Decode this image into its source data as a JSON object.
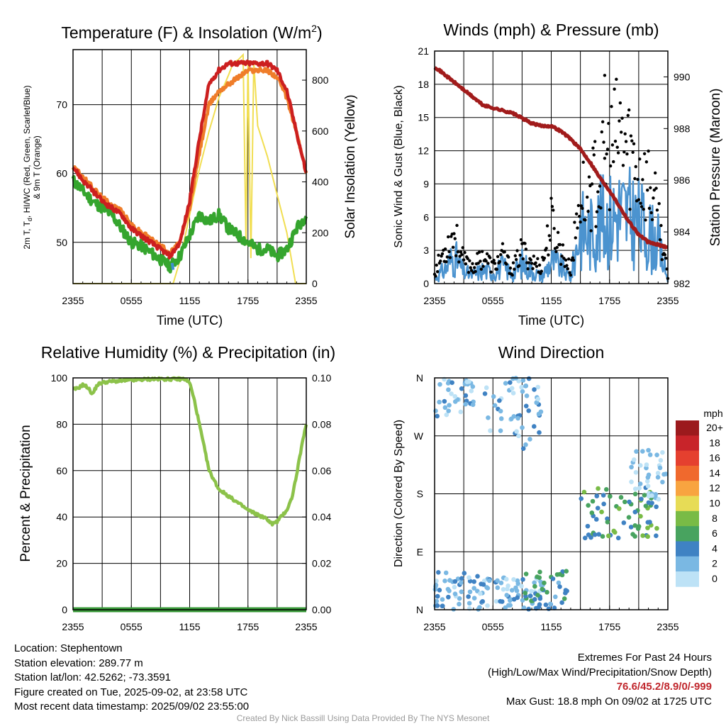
{
  "colors": {
    "temp": "#cc1f1f",
    "heat_index": "#35a52e",
    "temp_9m": "#ef7d2a",
    "dewpoint": "#3f8fd0",
    "solar": "#f1de52",
    "wind": "#4b93cf",
    "gust": "#000000",
    "pressure": "#a11b1b",
    "rh": "#8cc24a",
    "precip": "#3a9a3a",
    "extremes": "#c0272d"
  },
  "chart_data": [
    {
      "type": "line",
      "title": "Temperature (F) & Insolation (W/m²)",
      "xlabel": "Time (UTC)",
      "ylabel": "2m T, Td, HI/WC (Red, Green, Scarlet/Blue) & 9m T (Orange)",
      "ylabel_line1": "2m T, T",
      "ylabel_sub": "d",
      "ylabel_line1_rest": ", HI/WC (Red, Green, Scarlet/Blue)",
      "ylabel_line2": "& 9m T (Orange)",
      "y2label": "Solar Insolation (Yellow)",
      "x_ticks": [
        "2355",
        "0555",
        "1155",
        "1755",
        "2355"
      ],
      "ylim": [
        44,
        78
      ],
      "y_ticks": [
        50,
        60,
        70
      ],
      "y2lim": [
        0,
        920
      ],
      "y2_ticks": [
        0,
        200,
        400,
        600,
        800
      ],
      "series": [
        {
          "name": "2m T",
          "hours": [
            0,
            1,
            2,
            3,
            4,
            5,
            6,
            7,
            8,
            9,
            10,
            11,
            12,
            13,
            14,
            15,
            16,
            17,
            18,
            19,
            20,
            21,
            22,
            23,
            24
          ],
          "values": [
            61,
            59,
            57.5,
            56,
            55,
            54,
            52,
            51,
            50,
            49,
            48,
            50,
            56,
            65,
            73,
            75,
            76,
            76,
            76,
            76,
            76,
            75,
            72,
            66,
            60
          ]
        },
        {
          "name": "9m T",
          "hours": [
            0,
            1,
            2,
            3,
            4,
            5,
            6,
            7,
            8,
            9,
            10,
            11,
            12,
            13,
            14,
            15,
            16,
            17,
            18,
            19,
            20,
            21,
            22,
            23,
            24
          ],
          "values": [
            61,
            59.5,
            58,
            56.5,
            55.5,
            54.5,
            52.5,
            51.5,
            50.5,
            49.5,
            48.5,
            50,
            55,
            63,
            70,
            72,
            73,
            74,
            75,
            75,
            75,
            74,
            71,
            66,
            60
          ]
        },
        {
          "name": "Dewpoint",
          "hours": [
            0,
            1,
            2,
            3,
            4,
            5,
            6,
            7,
            8,
            9,
            10,
            11,
            12,
            13,
            14,
            15,
            16,
            17,
            18,
            19,
            20,
            21,
            22,
            23,
            24
          ],
          "values": [
            59,
            57.5,
            56,
            55,
            54,
            52,
            50,
            49.5,
            48.5,
            47.5,
            46.5,
            48,
            51,
            54,
            53,
            54,
            52,
            51,
            50,
            49,
            49,
            48,
            49,
            52,
            54
          ]
        },
        {
          "name": "Solar Insolation",
          "hours": [
            0,
            10.3,
            11,
            12,
            13,
            14,
            15,
            16,
            16.5,
            17,
            17.5,
            17.8,
            18,
            18.3,
            18.6,
            19,
            20,
            21,
            22,
            22.9,
            24
          ],
          "values": [
            0,
            0,
            90,
            270,
            450,
            600,
            730,
            820,
            870,
            880,
            900,
            150,
            880,
            100,
            870,
            620,
            500,
            350,
            200,
            0,
            0
          ]
        }
      ]
    },
    {
      "type": "line",
      "title": "Winds (mph) & Pressure (mb)",
      "xlabel": "Time (UTC)",
      "ylabel": "Sonic Wind & Gust (Blue, Black)",
      "y2label": "Station Pressure (Maroon)",
      "x_ticks": [
        "2355",
        "0555",
        "1155",
        "1755",
        "2355"
      ],
      "ylim": [
        0,
        21
      ],
      "y_ticks": [
        0,
        3,
        6,
        9,
        12,
        15,
        18,
        21
      ],
      "y2lim": [
        982,
        991
      ],
      "y2_ticks": [
        982,
        984,
        986,
        988,
        990
      ],
      "series": [
        {
          "name": "Sonic Wind",
          "hours": [
            0,
            1,
            2,
            3,
            4,
            5,
            6,
            7,
            8,
            9,
            10,
            11,
            12,
            13,
            14,
            15,
            16,
            17,
            18,
            19,
            20,
            21,
            22,
            23,
            24
          ],
          "values": [
            0.5,
            1.2,
            2.5,
            1.0,
            0.8,
            1.2,
            1.0,
            1.5,
            0.8,
            1.8,
            1.2,
            0.6,
            2.0,
            1.5,
            0.5,
            5.0,
            4.5,
            5.5,
            5.8,
            6.5,
            6.0,
            5.5,
            4.5,
            3.5,
            0.3
          ]
        },
        {
          "name": "Gust",
          "hours": [
            0,
            1,
            2,
            3,
            4,
            5,
            6,
            7,
            8,
            9,
            10,
            11,
            12,
            13,
            14,
            15,
            16,
            17,
            18,
            19,
            20,
            21,
            22,
            23,
            24
          ],
          "values": [
            1.0,
            3.0,
            4.5,
            2.0,
            1.5,
            2.5,
            1.5,
            2.5,
            1.2,
            3.0,
            2.0,
            1.5,
            5.5,
            3.0,
            1.2,
            8.0,
            8.5,
            9.5,
            11.5,
            13.5,
            12.0,
            10.0,
            9.0,
            6.0,
            0.5
          ]
        },
        {
          "name": "Station Pressure",
          "hours": [
            0,
            1,
            2,
            3,
            4,
            5,
            6,
            7,
            8,
            9,
            10,
            11,
            12,
            13,
            14,
            15,
            16,
            17,
            18,
            19,
            20,
            21,
            22,
            23,
            24
          ],
          "values": [
            990.4,
            990.1,
            989.8,
            989.5,
            989.2,
            988.9,
            988.8,
            988.7,
            988.6,
            988.4,
            988.2,
            988.1,
            988.1,
            987.9,
            987.6,
            987.2,
            986.7,
            986.1,
            985.6,
            985.0,
            984.4,
            983.9,
            983.6,
            983.5,
            983.4
          ]
        }
      ]
    },
    {
      "type": "line",
      "title": "Relative Humidity (%) & Precipitation (in)",
      "ylabel": "Percent & Precipitation",
      "x_ticks": [
        "2355",
        "0555",
        "1155",
        "1755",
        "2355"
      ],
      "ylim": [
        0,
        100
      ],
      "y_ticks": [
        0,
        20,
        40,
        60,
        80,
        100
      ],
      "y2lim": [
        0,
        0.1
      ],
      "y2_ticks": [
        "0.00",
        "0.02",
        "0.04",
        "0.06",
        "0.08",
        "0.10"
      ],
      "series": [
        {
          "name": "Relative Humidity",
          "hours": [
            0,
            0.5,
            1,
            1.5,
            2,
            2.5,
            3,
            4,
            6,
            8,
            10,
            11.5,
            12,
            12.5,
            13,
            13.5,
            14,
            15,
            16,
            17,
            18,
            19,
            20,
            20.5,
            21,
            22,
            22.5,
            23,
            23.5,
            24
          ],
          "values": [
            95,
            95.5,
            97,
            96,
            93,
            97,
            98,
            98.5,
            99,
            99.5,
            99.5,
            99.5,
            98,
            90,
            80,
            70,
            60,
            52,
            49,
            46,
            43,
            41,
            39,
            37,
            38,
            43,
            48,
            58,
            70,
            80
          ]
        },
        {
          "name": "Precipitation",
          "hours": [
            0,
            24
          ],
          "values": [
            0,
            0
          ]
        }
      ]
    },
    {
      "type": "scatter",
      "title": "Wind Direction",
      "ylabel": "Direction (Colored By Speed)",
      "x_ticks": [
        "2355",
        "0555",
        "1155",
        "1755",
        "2355"
      ],
      "y_ticks": [
        "N",
        "E",
        "S",
        "W",
        "N"
      ],
      "ylim": [
        0,
        360
      ],
      "colorbar": {
        "unit": "mph",
        "labels": [
          "20+",
          "18",
          "16",
          "14",
          "12",
          "10",
          "8",
          "6",
          "4",
          "2",
          "0"
        ],
        "colors": [
          "#9c1a1d",
          "#c8242a",
          "#e5402f",
          "#f0692d",
          "#f8a440",
          "#e7dc56",
          "#79bb46",
          "#48a35f",
          "#3f82c3",
          "#7ab8e3",
          "#bde2f6"
        ]
      },
      "clusters": [
        {
          "hours": [
            0,
            5
          ],
          "dirs": [
            0,
            60
          ],
          "speeds": [
            0,
            4
          ]
        },
        {
          "hours": [
            0,
            4
          ],
          "dirs": [
            300,
            360
          ],
          "speeds": [
            0,
            4
          ]
        },
        {
          "hours": [
            4,
            11
          ],
          "dirs": [
            0,
            50
          ],
          "speeds": [
            0,
            4
          ]
        },
        {
          "hours": [
            5,
            11
          ],
          "dirs": [
            250,
            360
          ],
          "speeds": [
            0,
            4
          ]
        },
        {
          "hours": [
            9,
            14
          ],
          "dirs": [
            0,
            60
          ],
          "speeds": [
            2,
            6
          ]
        },
        {
          "hours": [
            15,
            23
          ],
          "dirs": [
            110,
            190
          ],
          "speeds": [
            3,
            8
          ]
        },
        {
          "hours": [
            20,
            24
          ],
          "dirs": [
            170,
            250
          ],
          "speeds": [
            0,
            2
          ]
        }
      ]
    }
  ],
  "info": {
    "location": "Location: Stephentown",
    "elevation": "Station elevation: 289.77 m",
    "latlon": "Station lat/lon: 42.5262; -73.3591",
    "created": "Figure created on Tue, 2025-09-02, at 23:58 UTC",
    "recent": "Most recent data timestamp: 2025/09/02 23:55:00"
  },
  "extremes": {
    "title": "Extremes For Past 24 Hours",
    "legend": "(High/Low/Max Wind/Precipitation/Snow Depth)",
    "values": "76.6/45.2/8.9/0/-999",
    "max_gust": "Max Gust: 18.8 mph On 09/02 at 1725 UTC"
  },
  "credit": "Created By Nick Bassill Using Data Provided By The NYS Mesonet"
}
